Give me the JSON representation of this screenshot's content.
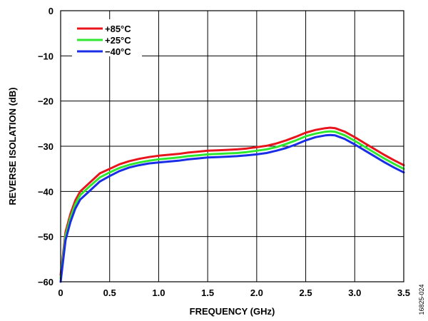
{
  "chart_data": {
    "type": "line",
    "xlabel": "FREQUENCY (GHz)",
    "ylabel": "REVERSE ISOLATION (dB)",
    "xlim": [
      0,
      3.5
    ],
    "ylim": [
      -60,
      0
    ],
    "x_ticks": [
      "0",
      "0.5",
      "1.0",
      "1.5",
      "2.0",
      "2.5",
      "3.0",
      "3.5"
    ],
    "y_ticks": [
      "0",
      "−10",
      "−20",
      "−30",
      "−40",
      "−50",
      "−60"
    ],
    "grid": true,
    "legend_position": "top-left",
    "figure_id": "16825-024",
    "series": [
      {
        "name": "+85°C",
        "color": "#e8141b",
        "x": [
          0.0,
          0.05,
          0.1,
          0.15,
          0.2,
          0.3,
          0.4,
          0.5,
          0.6,
          0.7,
          0.8,
          0.9,
          1.0,
          1.1,
          1.2,
          1.3,
          1.4,
          1.5,
          1.6,
          1.7,
          1.8,
          1.9,
          2.0,
          2.1,
          2.2,
          2.3,
          2.4,
          2.5,
          2.6,
          2.7,
          2.75,
          2.8,
          2.9,
          3.0,
          3.1,
          3.2,
          3.3,
          3.4,
          3.5
        ],
        "y": [
          -58.5,
          -49,
          -45,
          -42,
          -40,
          -38,
          -36,
          -35,
          -34,
          -33.3,
          -32.8,
          -32.4,
          -32.1,
          -31.9,
          -31.7,
          -31.4,
          -31.2,
          -31.0,
          -30.9,
          -30.8,
          -30.7,
          -30.5,
          -30.2,
          -29.9,
          -29.4,
          -28.7,
          -27.9,
          -27.0,
          -26.4,
          -26.0,
          -25.9,
          -26.0,
          -26.8,
          -28.0,
          -29.3,
          -30.6,
          -31.9,
          -33.1,
          -34.2
        ]
      },
      {
        "name": "+25°C",
        "color": "#2ee82e",
        "x": [
          0.0,
          0.05,
          0.1,
          0.15,
          0.2,
          0.3,
          0.4,
          0.5,
          0.6,
          0.7,
          0.8,
          0.9,
          1.0,
          1.1,
          1.2,
          1.3,
          1.4,
          1.5,
          1.6,
          1.7,
          1.8,
          1.9,
          2.0,
          2.1,
          2.2,
          2.3,
          2.4,
          2.5,
          2.6,
          2.7,
          2.75,
          2.8,
          2.9,
          3.0,
          3.1,
          3.2,
          3.3,
          3.4,
          3.5
        ],
        "y": [
          -59.2,
          -49.8,
          -45.8,
          -42.8,
          -40.8,
          -38.8,
          -36.9,
          -35.8,
          -34.8,
          -34.1,
          -33.6,
          -33.2,
          -32.9,
          -32.7,
          -32.5,
          -32.2,
          -32.0,
          -31.8,
          -31.7,
          -31.6,
          -31.5,
          -31.3,
          -31.0,
          -30.7,
          -30.2,
          -29.5,
          -28.7,
          -27.8,
          -27.2,
          -26.8,
          -26.7,
          -26.8,
          -27.6,
          -28.8,
          -30.1,
          -31.4,
          -32.7,
          -33.9,
          -35.0
        ]
      },
      {
        "name": "−40°C",
        "color": "#1a2ee6",
        "x": [
          0.0,
          0.05,
          0.1,
          0.15,
          0.2,
          0.3,
          0.4,
          0.5,
          0.6,
          0.7,
          0.8,
          0.9,
          1.0,
          1.1,
          1.2,
          1.3,
          1.4,
          1.5,
          1.6,
          1.7,
          1.8,
          1.9,
          2.0,
          2.1,
          2.2,
          2.3,
          2.4,
          2.5,
          2.6,
          2.7,
          2.75,
          2.8,
          2.9,
          3.0,
          3.1,
          3.2,
          3.3,
          3.4,
          3.5
        ],
        "y": [
          -60,
          -50.8,
          -46.8,
          -43.8,
          -41.8,
          -39.8,
          -37.8,
          -36.6,
          -35.5,
          -34.7,
          -34.2,
          -33.8,
          -33.6,
          -33.4,
          -33.2,
          -32.9,
          -32.7,
          -32.5,
          -32.4,
          -32.3,
          -32.2,
          -32.0,
          -31.8,
          -31.5,
          -31.0,
          -30.4,
          -29.6,
          -28.7,
          -28.0,
          -27.6,
          -27.5,
          -27.6,
          -28.4,
          -29.6,
          -30.9,
          -32.2,
          -33.5,
          -34.7,
          -35.8
        ]
      }
    ]
  }
}
